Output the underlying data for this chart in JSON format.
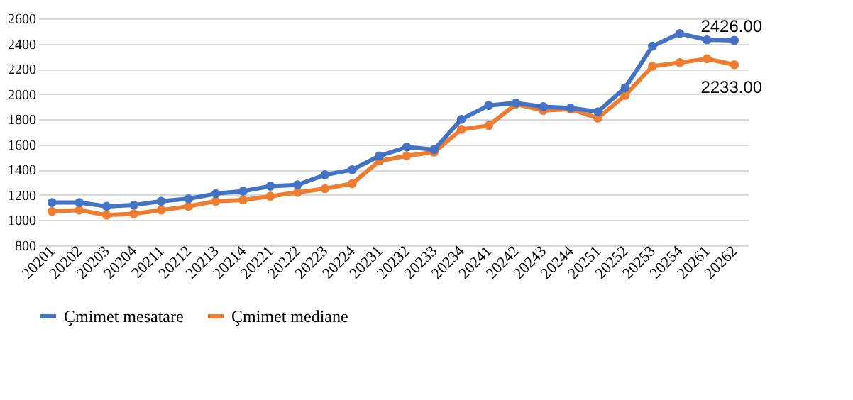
{
  "chart_data": {
    "type": "line",
    "categories": [
      "20201",
      "20202",
      "20203",
      "20204",
      "20211",
      "20212",
      "20213",
      "20214",
      "20221",
      "20222",
      "20223",
      "20224",
      "20231",
      "20232",
      "20233",
      "20234",
      "20241",
      "20242",
      "20243",
      "20244",
      "20251",
      "20252",
      "20253",
      "20254",
      "20261",
      "20262"
    ],
    "series": [
      {
        "name": "Çmimet mesatare",
        "color": "#4472c4",
        "values": [
          1140,
          1140,
          1110,
          1120,
          1150,
          1170,
          1210,
          1230,
          1270,
          1280,
          1360,
          1400,
          1510,
          1580,
          1560,
          1800,
          1910,
          1930,
          1900,
          1890,
          1860,
          2050,
          2380,
          2480,
          2430,
          2426
        ],
        "value_labels": [
          null,
          null,
          null,
          null,
          null,
          null,
          null,
          null,
          null,
          null,
          null,
          null,
          null,
          null,
          null,
          null,
          null,
          null,
          null,
          null,
          null,
          null,
          null,
          null,
          null,
          "2426.00"
        ]
      },
      {
        "name": "Çmimet mediane",
        "color": "#ed7d31",
        "values": [
          1070,
          1080,
          1040,
          1050,
          1080,
          1110,
          1150,
          1160,
          1190,
          1220,
          1250,
          1290,
          1470,
          1510,
          1540,
          1720,
          1750,
          1920,
          1870,
          1880,
          1810,
          1990,
          2220,
          2250,
          2280,
          2233
        ],
        "value_labels": [
          null,
          null,
          null,
          null,
          null,
          null,
          null,
          null,
          null,
          null,
          null,
          null,
          null,
          null,
          null,
          null,
          null,
          null,
          null,
          null,
          null,
          null,
          null,
          null,
          null,
          "2233.00"
        ]
      }
    ],
    "ylim": [
      800,
      2600
    ],
    "yticks": [
      800,
      1000,
      1200,
      1400,
      1600,
      1800,
      2000,
      2200,
      2400,
      2600
    ],
    "grid": "y",
    "legend": "bottom",
    "marker": "circle",
    "line_style": "solid"
  }
}
